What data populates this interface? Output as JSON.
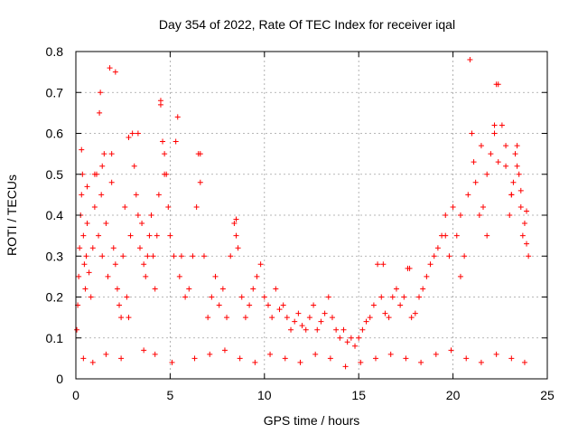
{
  "chart_data": {
    "type": "scatter",
    "title": "Day 354 of 2022, Rate Of TEC Index for receiver iqal",
    "xlabel": "GPS time / hours",
    "ylabel": "ROTI / TECUs",
    "xlim": [
      0,
      25
    ],
    "ylim": [
      0,
      0.8
    ],
    "xticks": [
      "0",
      "5",
      "10",
      "15",
      "20",
      "25"
    ],
    "yticks": [
      "0",
      "0.1",
      "0.2",
      "0.3",
      "0.4",
      "0.5",
      "0.6",
      "0.7",
      "0.8"
    ],
    "xtick_values": [
      0,
      5,
      10,
      15,
      20,
      25
    ],
    "ytick_values": [
      0,
      0.1,
      0.2,
      0.3,
      0.4,
      0.5,
      0.6,
      0.7,
      0.8
    ],
    "grid": true,
    "marker": "+",
    "color": "#ff0000",
    "series": [
      {
        "name": "ROTI",
        "x": [
          0.05,
          0.1,
          0.15,
          0.2,
          0.25,
          0.3,
          0.35,
          0.4,
          0.45,
          0.5,
          0.55,
          0.6,
          0.7,
          0.8,
          0.9,
          1.0,
          1.1,
          1.2,
          1.25,
          1.3,
          1.35,
          1.4,
          1.5,
          1.6,
          1.7,
          1.8,
          1.9,
          2.0,
          2.1,
          2.2,
          2.3,
          2.4,
          2.5,
          2.6,
          2.7,
          2.8,
          2.9,
          3.0,
          3.1,
          3.2,
          3.3,
          3.4,
          3.5,
          3.6,
          3.7,
          3.8,
          3.9,
          4.0,
          4.1,
          4.2,
          4.3,
          4.4,
          4.5,
          4.6,
          4.7,
          4.8,
          4.9,
          5.0,
          5.2,
          5.4,
          5.5,
          5.6,
          5.8,
          6.0,
          6.2,
          6.4,
          6.5,
          6.6,
          6.8,
          7.0,
          7.2,
          7.4,
          7.6,
          7.8,
          8.0,
          8.2,
          8.4,
          8.5,
          8.6,
          8.8,
          9.0,
          9.2,
          9.4,
          9.6,
          9.8,
          10.0,
          10.2,
          10.4,
          10.6,
          10.8,
          11.0,
          11.2,
          11.4,
          11.6,
          11.8,
          12.0,
          12.2,
          12.4,
          12.6,
          12.8,
          13.0,
          13.2,
          13.4,
          13.6,
          13.8,
          14.0,
          14.2,
          14.4,
          14.6,
          14.8,
          15.0,
          15.2,
          15.4,
          15.6,
          15.8,
          16.0,
          16.2,
          16.4,
          16.6,
          16.8,
          17.0,
          17.2,
          17.4,
          17.6,
          17.8,
          18.0,
          18.2,
          18.4,
          18.6,
          18.8,
          19.0,
          19.2,
          19.4,
          19.6,
          19.8,
          20.0,
          20.2,
          20.4,
          20.6,
          20.8,
          21.0,
          21.2,
          21.4,
          21.6,
          21.8,
          22.0,
          22.2,
          22.4,
          22.6,
          22.8,
          23.0,
          23.1,
          23.2,
          23.3,
          23.4,
          23.5,
          23.6,
          23.7,
          23.8,
          23.9,
          24.0,
          0.3,
          0.6,
          1.0,
          1.4,
          1.9,
          2.1,
          2.8,
          3.3,
          4.5,
          4.7,
          5.3,
          6.6,
          8.5,
          16.3,
          17.7,
          19.6,
          20.4,
          20.9,
          21.1,
          21.5,
          21.8,
          22.2,
          22.3,
          22.4,
          22.8,
          23.1,
          23.4,
          23.6,
          23.9,
          0.4,
          0.9,
          1.6,
          2.4,
          3.6,
          4.2,
          5.1,
          6.3,
          7.1,
          7.9,
          8.7,
          9.5,
          10.3,
          11.1,
          11.9,
          12.7,
          13.5,
          14.3,
          15.1,
          15.9,
          16.7,
          17.5,
          18.3,
          19.1,
          19.9,
          20.7,
          21.5,
          22.3,
          23.1,
          23.8
        ],
        "y": [
          0.12,
          0.18,
          0.25,
          0.32,
          0.4,
          0.45,
          0.5,
          0.35,
          0.28,
          0.22,
          0.3,
          0.38,
          0.26,
          0.2,
          0.32,
          0.42,
          0.5,
          0.35,
          0.65,
          0.7,
          0.45,
          0.3,
          0.55,
          0.38,
          0.25,
          0.76,
          0.48,
          0.32,
          0.28,
          0.22,
          0.18,
          0.15,
          0.3,
          0.42,
          0.2,
          0.15,
          0.35,
          0.6,
          0.52,
          0.45,
          0.4,
          0.32,
          0.38,
          0.28,
          0.25,
          0.3,
          0.35,
          0.4,
          0.3,
          0.22,
          0.35,
          0.45,
          0.68,
          0.58,
          0.55,
          0.5,
          0.42,
          0.35,
          0.3,
          0.64,
          0.25,
          0.3,
          0.2,
          0.22,
          0.3,
          0.42,
          0.55,
          0.48,
          0.3,
          0.15,
          0.2,
          0.25,
          0.18,
          0.22,
          0.15,
          0.3,
          0.38,
          0.35,
          0.32,
          0.2,
          0.15,
          0.18,
          0.22,
          0.25,
          0.28,
          0.2,
          0.18,
          0.15,
          0.22,
          0.17,
          0.18,
          0.15,
          0.12,
          0.14,
          0.16,
          0.13,
          0.12,
          0.15,
          0.18,
          0.12,
          0.14,
          0.16,
          0.2,
          0.15,
          0.12,
          0.1,
          0.12,
          0.09,
          0.1,
          0.08,
          0.1,
          0.12,
          0.14,
          0.15,
          0.18,
          0.28,
          0.2,
          0.16,
          0.15,
          0.2,
          0.22,
          0.18,
          0.2,
          0.27,
          0.15,
          0.16,
          0.2,
          0.22,
          0.25,
          0.28,
          0.3,
          0.32,
          0.35,
          0.4,
          0.3,
          0.42,
          0.35,
          0.25,
          0.3,
          0.45,
          0.6,
          0.48,
          0.4,
          0.42,
          0.35,
          0.55,
          0.6,
          0.72,
          0.62,
          0.52,
          0.4,
          0.45,
          0.48,
          0.55,
          0.52,
          0.5,
          0.42,
          0.35,
          0.38,
          0.33,
          0.3,
          0.56,
          0.47,
          0.5,
          0.52,
          0.55,
          0.75,
          0.59,
          0.6,
          0.67,
          0.5,
          0.58,
          0.55,
          0.39,
          0.28,
          0.27,
          0.35,
          0.4,
          0.78,
          0.53,
          0.57,
          0.5,
          0.62,
          0.72,
          0.53,
          0.57,
          0.45,
          0.57,
          0.46,
          0.41,
          0.05,
          0.04,
          0.06,
          0.05,
          0.07,
          0.06,
          0.04,
          0.05,
          0.06,
          0.07,
          0.05,
          0.04,
          0.06,
          0.05,
          0.04,
          0.06,
          0.05,
          0.03,
          0.04,
          0.05,
          0.06,
          0.05,
          0.04,
          0.06,
          0.07,
          0.05,
          0.04,
          0.06,
          0.05,
          0.04
        ]
      }
    ]
  }
}
